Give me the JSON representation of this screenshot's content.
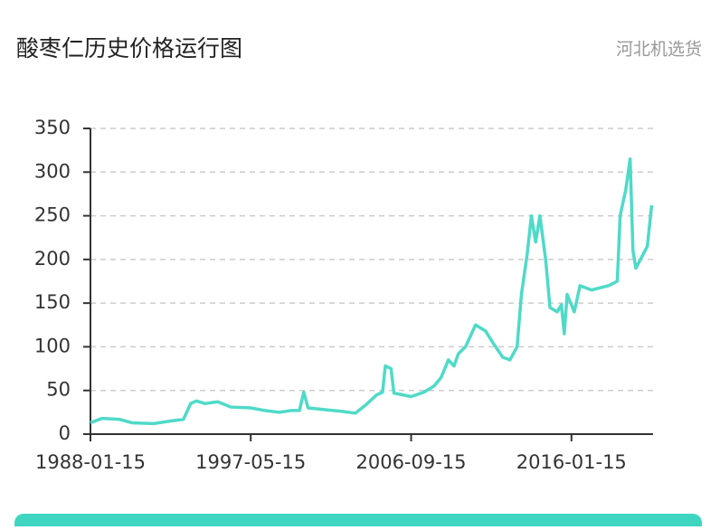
{
  "chart_data": {
    "type": "line",
    "title": "酸枣仁历史价格运行图",
    "subtitle": "河北机选货",
    "x": [
      "1988-01-15",
      "1988-09-15",
      "1989-09-15",
      "1990-06-15",
      "1991-09-15",
      "1992-09-15",
      "1993-06-15",
      "1993-11-15",
      "1994-03-15",
      "1994-09-15",
      "1995-06-15",
      "1996-03-15",
      "1997-05-15",
      "1998-03-15",
      "1999-01-15",
      "1999-09-15",
      "2000-03-15",
      "2000-06-15",
      "2000-09-15",
      "2001-09-15",
      "2002-09-15",
      "2003-06-15",
      "2004-01-15",
      "2004-09-15",
      "2005-01-15",
      "2005-03-15",
      "2005-07-15",
      "2005-09-15",
      "2006-09-15",
      "2007-06-15",
      "2008-01-15",
      "2008-06-15",
      "2008-11-15",
      "2009-03-15",
      "2009-06-15",
      "2009-11-15",
      "2010-06-15",
      "2011-01-15",
      "2011-06-15",
      "2012-01-15",
      "2012-06-15",
      "2012-11-15",
      "2013-02-15",
      "2013-06-15",
      "2013-09-15",
      "2013-12-15",
      "2014-03-15",
      "2014-07-15",
      "2014-10-15",
      "2015-03-15",
      "2015-06-15",
      "2015-08-15",
      "2015-10-15",
      "2016-03-15",
      "2016-07-15",
      "2017-03-15",
      "2018-03-15",
      "2018-09-15",
      "2018-11-15",
      "2019-03-15",
      "2019-06-15",
      "2019-08-15",
      "2019-10-15",
      "2020-06-15",
      "2020-09-15"
    ],
    "series": [
      {
        "name": "河北机选货",
        "color": "#4fdac8",
        "values": [
          13,
          18,
          17,
          13,
          12,
          15,
          17,
          35,
          38,
          35,
          37,
          31,
          30,
          27,
          25,
          27,
          27,
          48,
          30,
          28,
          26,
          24,
          33,
          45,
          48,
          78,
          75,
          47,
          43,
          48,
          55,
          65,
          85,
          78,
          92,
          100,
          125,
          118,
          105,
          88,
          85,
          100,
          160,
          205,
          250,
          220,
          250,
          200,
          145,
          140,
          148,
          115,
          160,
          140,
          170,
          165,
          170,
          175,
          250,
          280,
          315,
          210,
          190,
          215,
          262
        ]
      }
    ],
    "xlim": [
      "1988-01-15",
      "2020-10-15"
    ],
    "xticks": [
      "1988-01-15",
      "1997-05-15",
      "2006-09-15",
      "2016-01-15"
    ],
    "ylim": [
      0,
      350
    ],
    "yticks": [
      0,
      50,
      100,
      150,
      200,
      250,
      300,
      350
    ],
    "grid": true
  }
}
